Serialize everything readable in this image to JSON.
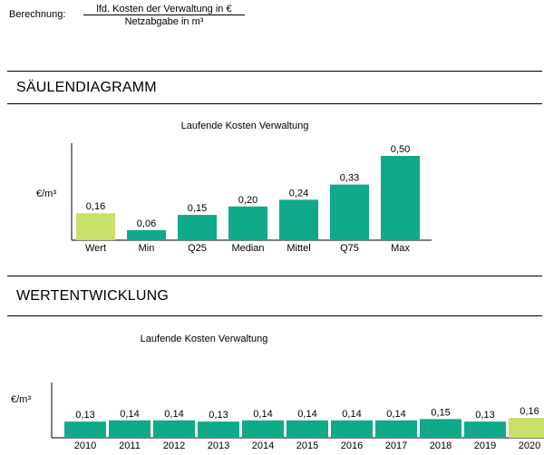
{
  "formula": {
    "label": "Berechnung:",
    "numerator": "lfd. Kosten der Verwaltung in €",
    "denominator": "Netzabgabe in m³"
  },
  "sections": {
    "bar_title": "SÄULENDIAGRAMM",
    "trend_title": "WERTENTWICKLUNG"
  },
  "colors": {
    "highlight": "#c8e16a",
    "bar": "#10a98a"
  },
  "chart_data": [
    {
      "type": "bar",
      "title": "Laufende Kosten Verwaltung",
      "ylabel": "€/m³",
      "xlabel": "",
      "categories": [
        "Wert",
        "Min",
        "Q25",
        "Median",
        "Mittel",
        "Q75",
        "Max"
      ],
      "values": [
        0.16,
        0.06,
        0.15,
        0.2,
        0.24,
        0.33,
        0.5
      ],
      "labels": [
        "0,16",
        "0,06",
        "0,15",
        "0,20",
        "0,24",
        "0,33",
        "0,50"
      ],
      "highlight_index": 0,
      "ylim": [
        0,
        0.5
      ]
    },
    {
      "type": "bar",
      "title": "Laufende Kosten Verwaltung",
      "ylabel": "€/m³",
      "xlabel": "",
      "categories": [
        "2010",
        "2011",
        "2012",
        "2013",
        "2014",
        "2015",
        "2016",
        "2017",
        "2018",
        "2019",
        "2020"
      ],
      "values": [
        0.13,
        0.14,
        0.14,
        0.13,
        0.14,
        0.14,
        0.14,
        0.14,
        0.15,
        0.13,
        0.16
      ],
      "labels": [
        "0,13",
        "0,14",
        "0,14",
        "0,13",
        "0,14",
        "0,14",
        "0,14",
        "0,14",
        "0,15",
        "0,13",
        "0,16"
      ],
      "highlight_index": 10,
      "ylim": [
        0,
        0.16
      ]
    }
  ]
}
